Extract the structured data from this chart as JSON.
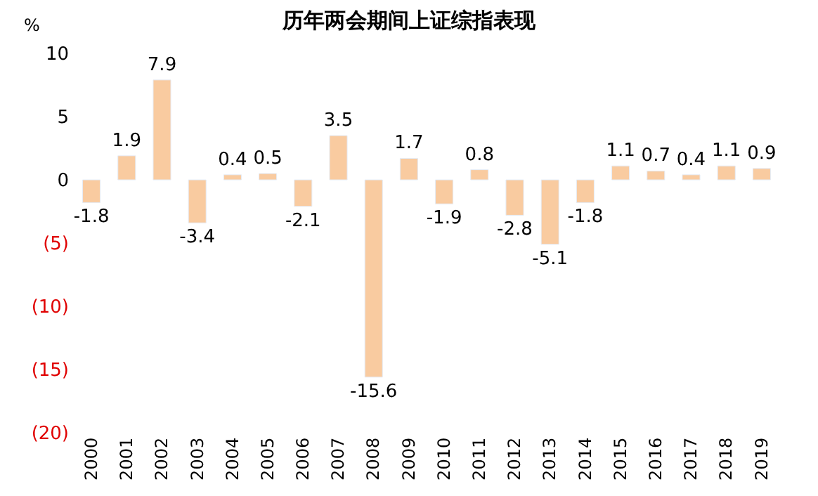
{
  "chart_data": {
    "type": "bar",
    "title": "历年两会期间上证综指表现",
    "ylabel": "%",
    "categories": [
      "2000",
      "2001",
      "2002",
      "2003",
      "2004",
      "2005",
      "2006",
      "2007",
      "2008",
      "2009",
      "2010",
      "2011",
      "2012",
      "2013",
      "2014",
      "2015",
      "2016",
      "2017",
      "2018",
      "2019"
    ],
    "values": [
      -1.8,
      1.9,
      7.9,
      -3.4,
      0.4,
      0.5,
      -2.1,
      3.5,
      -15.6,
      1.7,
      -1.9,
      0.8,
      -2.8,
      -5.1,
      -1.8,
      1.1,
      0.7,
      0.4,
      1.1,
      0.9
    ],
    "color": "#f9cba0",
    "ylim": [
      -20,
      10
    ],
    "yticks": [
      10,
      5,
      0,
      {
        "value": -5,
        "label": "(5)"
      },
      {
        "value": -10,
        "label": "(10)"
      },
      {
        "value": -15,
        "label": "(15)"
      },
      {
        "value": -20,
        "label": "(20)"
      }
    ],
    "data_labels": true,
    "legend": false
  }
}
